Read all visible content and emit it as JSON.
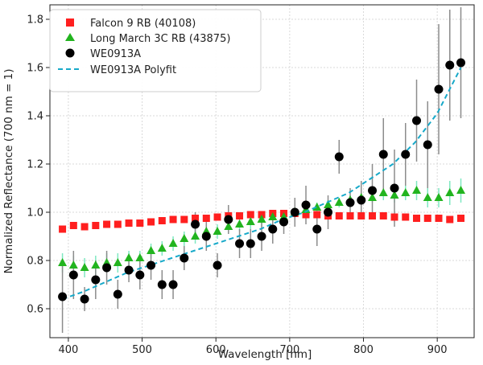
{
  "chart_data": {
    "type": "scatter",
    "title": "",
    "xlabel": "Wavelength [nm]",
    "ylabel": "Normalized Reflectance (700 nm = 1)",
    "xlim": [
      375,
      950
    ],
    "ylim": [
      0.48,
      1.86
    ],
    "xticks": [
      400,
      500,
      600,
      700,
      800,
      900
    ],
    "yticks": [
      0.6,
      0.8,
      1.0,
      1.2,
      1.4,
      1.6,
      1.8
    ],
    "grid": true,
    "legend_position": "top-left",
    "colors": {
      "falcon": "#ff1f1f",
      "longmarch": "#22b41f",
      "we": "#000000",
      "fit": "#17a9c9",
      "errorbar_we": "#8c8c8c",
      "errorbar_lm": "#7fe8c2",
      "grid": "#d9d9d9"
    },
    "series": [
      {
        "name": "Falcon 9 RB (40108)",
        "marker": "square",
        "x": [
          392,
          407,
          422,
          437,
          452,
          467,
          482,
          497,
          512,
          527,
          542,
          557,
          572,
          587,
          602,
          617,
          632,
          647,
          662,
          677,
          692,
          707,
          722,
          737,
          752,
          767,
          782,
          797,
          812,
          827,
          842,
          857,
          872,
          887,
          902,
          917,
          932
        ],
        "y": [
          0.93,
          0.945,
          0.94,
          0.945,
          0.95,
          0.95,
          0.955,
          0.955,
          0.96,
          0.965,
          0.97,
          0.97,
          0.975,
          0.975,
          0.98,
          0.985,
          0.985,
          0.99,
          0.99,
          0.995,
          0.995,
          0.995,
          0.99,
          0.99,
          0.985,
          0.985,
          0.985,
          0.985,
          0.985,
          0.985,
          0.98,
          0.98,
          0.975,
          0.975,
          0.975,
          0.97,
          0.975
        ]
      },
      {
        "name": "Long March 3C RB (43875)",
        "marker": "triangle",
        "x": [
          392,
          407,
          422,
          437,
          452,
          467,
          482,
          497,
          512,
          527,
          542,
          557,
          572,
          587,
          602,
          617,
          632,
          647,
          662,
          677,
          692,
          707,
          722,
          737,
          752,
          767,
          782,
          797,
          812,
          827,
          842,
          857,
          872,
          887,
          902,
          917,
          932
        ],
        "y": [
          0.79,
          0.78,
          0.77,
          0.78,
          0.79,
          0.79,
          0.81,
          0.81,
          0.84,
          0.85,
          0.87,
          0.89,
          0.9,
          0.92,
          0.92,
          0.94,
          0.95,
          0.96,
          0.97,
          0.98,
          0.98,
          1.0,
          1.01,
          1.02,
          1.03,
          1.04,
          1.05,
          1.06,
          1.06,
          1.08,
          1.07,
          1.08,
          1.09,
          1.06,
          1.06,
          1.08,
          1.09
        ],
        "error": [
          0.04,
          0.04,
          0.04,
          0.04,
          0.04,
          0.04,
          0.03,
          0.03,
          0.03,
          0.03,
          0.03,
          0.03,
          0.03,
          0.03,
          0.03,
          0.03,
          0.03,
          0.03,
          0.03,
          0.03,
          0.02,
          0.02,
          0.02,
          0.02,
          0.02,
          0.02,
          0.02,
          0.02,
          0.02,
          0.03,
          0.03,
          0.03,
          0.04,
          0.04,
          0.04,
          0.05,
          0.05
        ]
      },
      {
        "name": "WE0913A",
        "marker": "circle",
        "x": [
          392,
          407,
          422,
          437,
          452,
          467,
          482,
          497,
          512,
          527,
          542,
          557,
          572,
          587,
          602,
          617,
          632,
          647,
          662,
          677,
          692,
          707,
          722,
          737,
          752,
          767,
          782,
          797,
          812,
          827,
          842,
          857,
          872,
          887,
          902,
          917,
          932
        ],
        "y": [
          0.65,
          0.74,
          0.64,
          0.72,
          0.77,
          0.66,
          0.76,
          0.74,
          0.78,
          0.7,
          0.7,
          0.81,
          0.95,
          0.9,
          0.78,
          0.97,
          0.87,
          0.87,
          0.9,
          0.93,
          0.96,
          1.0,
          1.03,
          0.93,
          1.0,
          1.23,
          1.04,
          1.05,
          1.09,
          1.24,
          1.1,
          1.24,
          1.38,
          1.28,
          1.51,
          1.61,
          1.62
        ],
        "error": [
          0.15,
          0.1,
          0.05,
          0.08,
          0.07,
          0.06,
          0.05,
          0.06,
          0.06,
          0.06,
          0.06,
          0.05,
          0.05,
          0.06,
          0.05,
          0.06,
          0.06,
          0.06,
          0.06,
          0.06,
          0.05,
          0.06,
          0.08,
          0.07,
          0.07,
          0.07,
          0.06,
          0.08,
          0.11,
          0.15,
          0.16,
          0.13,
          0.17,
          0.18,
          0.27,
          0.23,
          0.23
        ]
      },
      {
        "name": "WE0913A Polyfit",
        "marker": "dashed-line",
        "x": [
          392,
          420,
          450,
          480,
          510,
          540,
          570,
          600,
          630,
          660,
          690,
          720,
          750,
          780,
          810,
          840,
          870,
          900,
          932
        ],
        "y": [
          0.64,
          0.67,
          0.71,
          0.75,
          0.78,
          0.81,
          0.84,
          0.87,
          0.9,
          0.93,
          0.97,
          1.0,
          1.04,
          1.08,
          1.14,
          1.2,
          1.29,
          1.41,
          1.6
        ]
      }
    ]
  }
}
